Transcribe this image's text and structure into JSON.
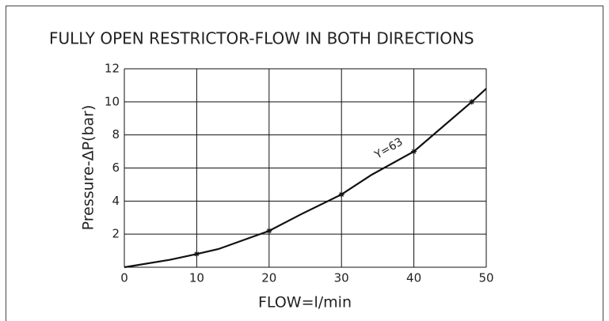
{
  "chart_data": {
    "type": "line",
    "title": "FULLY OPEN RESTRICTOR-FLOW IN BOTH DIRECTIONS",
    "xlabel": "FLOW=l/min",
    "ylabel": "Pressure-ΔP(bar)",
    "annotation": "Y=63",
    "xlim": [
      0,
      50
    ],
    "ylim": [
      0,
      12
    ],
    "xticks": [
      0,
      10,
      20,
      30,
      40,
      50
    ],
    "yticks": [
      2,
      4,
      6,
      8,
      10,
      12
    ],
    "grid": true,
    "color": "#111111",
    "series": [
      {
        "x": [
          0,
          6.3,
          10,
          13,
          20,
          24.4,
          30,
          34.2,
          40,
          42.4,
          48,
          50
        ],
        "values": [
          0,
          0.45,
          0.8,
          1.1,
          2.2,
          3.2,
          4.4,
          5.6,
          7,
          7.9,
          10,
          10.8
        ]
      }
    ],
    "points": {
      "x": [
        10,
        20,
        30,
        40,
        48
      ],
      "values": [
        0.8,
        2.2,
        4.4,
        7,
        10
      ]
    }
  }
}
